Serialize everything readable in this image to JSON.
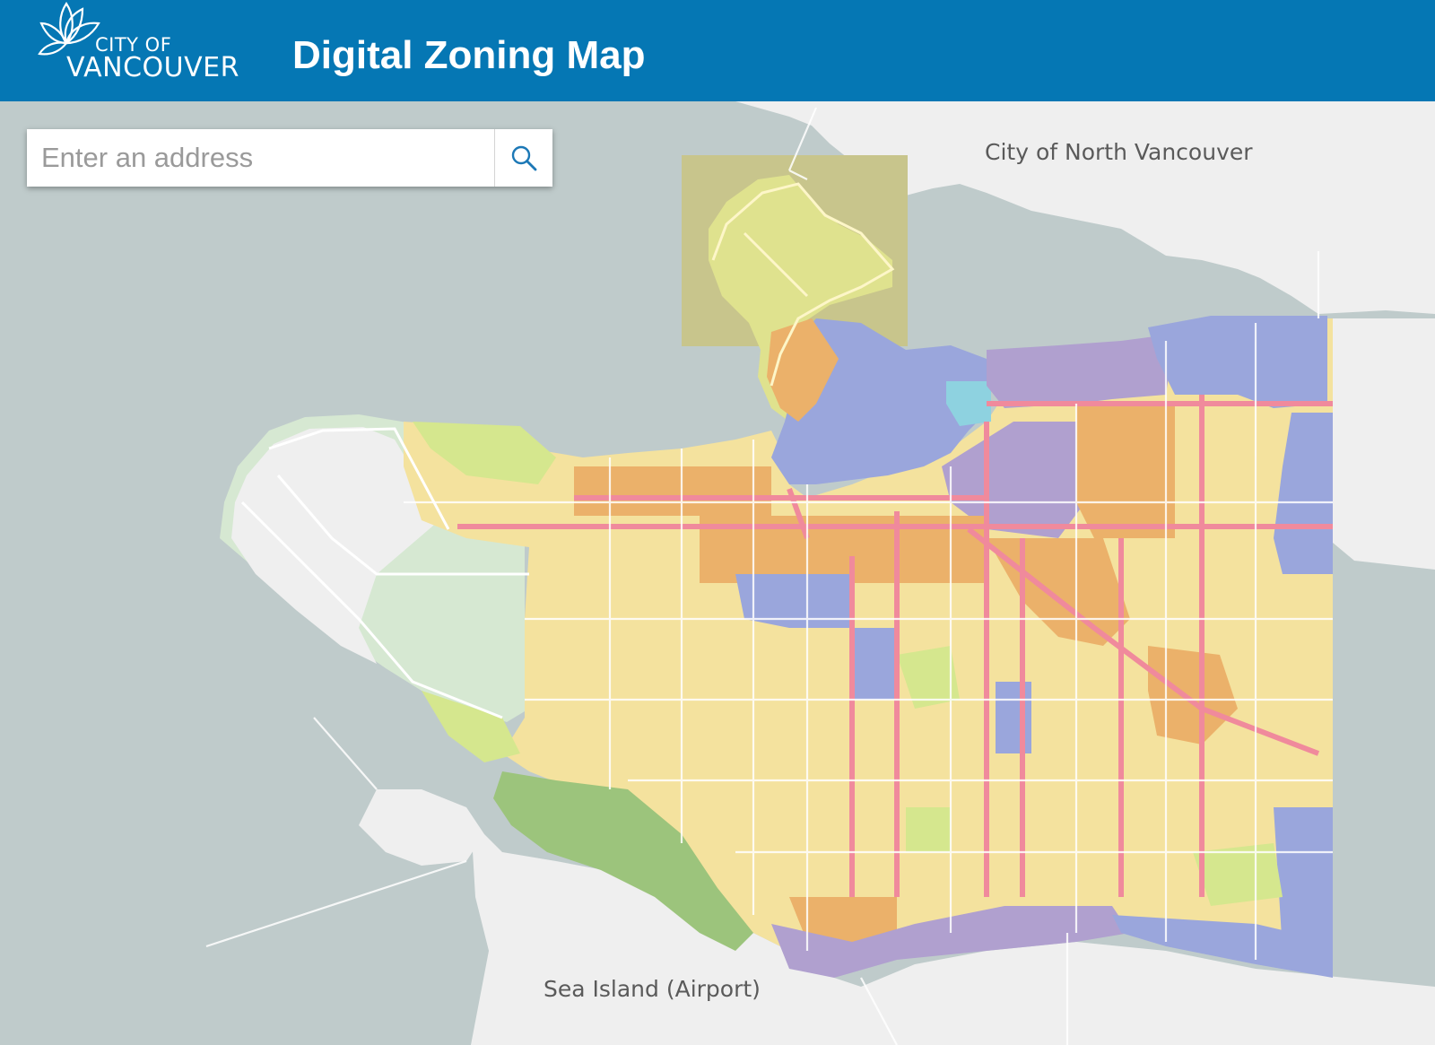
{
  "header": {
    "logo_line1": "CITY OF",
    "logo_line2": "VANCOUVER",
    "title": "Digital Zoning Map"
  },
  "search": {
    "placeholder": "Enter an address",
    "icon": "search-icon"
  },
  "map": {
    "labels": {
      "north": "City of North Vancouver",
      "airport": "Sea Island (Airport)"
    },
    "colors": {
      "header": "#0577b4",
      "water": "#bfcbcb",
      "land": "#efefef",
      "residential": "#f4e29e",
      "commercial_corridor": "#f08a9c",
      "mixed_use": "#ebb16a",
      "industrial": "#9aa6dc",
      "comprehensive_development": "#b0a0cf",
      "park": "#d5e78e",
      "university_endowment": "#d6e8d2",
      "forest": "#9cc47c"
    }
  }
}
